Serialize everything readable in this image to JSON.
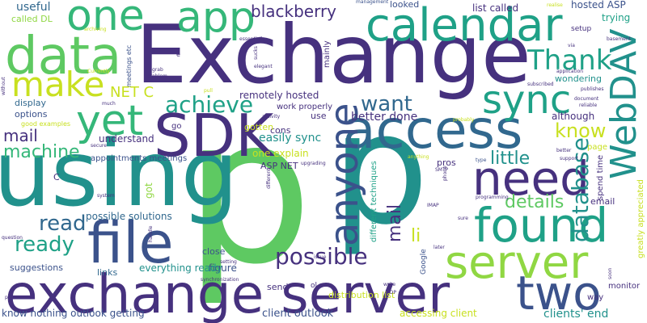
{
  "palette": {
    "dark_purple": "#46317e",
    "indigo": "#3b528b",
    "blue": "#31688e",
    "teal": "#21918c",
    "green_teal": "#1fa187",
    "green": "#35b779",
    "light_green": "#5ec962",
    "yellow_green": "#90d743",
    "yellow": "#c8e020"
  },
  "words": [
    {
      "text": "Exchange",
      "color": "#46317e"
    },
    {
      "text": "p",
      "color": "#5ec962"
    },
    {
      "text": "using",
      "color": "#21918c"
    },
    {
      "text": "p",
      "color": "#21918c"
    },
    {
      "text": "exchange server",
      "color": "#46317e"
    },
    {
      "text": "calendar",
      "color": "#1fa187"
    },
    {
      "text": "access",
      "color": "#31688e"
    },
    {
      "text": "data",
      "color": "#5ec962"
    },
    {
      "text": "file",
      "color": "#3b528b"
    },
    {
      "text": "SDK",
      "color": "#46317e"
    },
    {
      "text": "app",
      "color": "#35b779"
    },
    {
      "text": "one",
      "color": "#35b779"
    },
    {
      "text": "need",
      "color": "#46317e"
    },
    {
      "text": "found",
      "color": "#1fa187"
    },
    {
      "text": "server",
      "color": "#90d743"
    },
    {
      "text": "two",
      "color": "#3b528b"
    },
    {
      "text": "yet",
      "color": "#35b779"
    },
    {
      "text": "make",
      "color": "#c8e020"
    },
    {
      "text": "sync",
      "color": "#1fa187"
    },
    {
      "text": "Thank",
      "color": "#1fa187"
    },
    {
      "text": "WebDAV",
      "color": "#21918c"
    },
    {
      "text": "anyone",
      "color": "#3b528b"
    },
    {
      "text": "database",
      "color": "#21918c"
    },
    {
      "text": "possible",
      "color": "#46317e"
    },
    {
      "text": "blackberry",
      "color": "#46317e"
    },
    {
      "text": "achieve",
      "color": "#1fa187"
    },
    {
      "text": "want",
      "color": "#31688e"
    },
    {
      "text": "know",
      "color": "#c8e020"
    },
    {
      "text": "read",
      "color": "#31688e"
    },
    {
      "text": "ready",
      "color": "#1fa187"
    },
    {
      "text": "machine",
      "color": "#35b779"
    },
    {
      "text": "mail",
      "color": "#46317e"
    },
    {
      "text": "details",
      "color": "#5ec962"
    },
    {
      "text": "little",
      "color": "#21918c"
    },
    {
      "text": "searched",
      "color": "#31688e"
    },
    {
      "text": "li",
      "color": "#c8e020"
    },
    {
      "text": "NET C",
      "color": "#c8e020"
    },
    {
      "text": "useful",
      "color": "#31688e"
    },
    {
      "text": "hosted ASP",
      "color": "#3b528b"
    },
    {
      "text": "list called",
      "color": "#46317e"
    },
    {
      "text": "looked",
      "color": "#3b528b"
    },
    {
      "text": "remotely hosted",
      "color": "#46317e"
    },
    {
      "text": "better done",
      "color": "#46317e"
    },
    {
      "text": "although",
      "color": "#46317e"
    },
    {
      "text": "easily sync",
      "color": "#21918c"
    },
    {
      "text": "one explain",
      "color": "#c8e020"
    },
    {
      "text": "understand",
      "color": "#46317e"
    },
    {
      "text": "display",
      "color": "#31688e"
    },
    {
      "text": "options",
      "color": "#3b528b"
    },
    {
      "text": "possible solutions",
      "color": "#31688e"
    },
    {
      "text": "appointments meetings",
      "color": "#3b528b"
    },
    {
      "text": "figure",
      "color": "#3b528b"
    },
    {
      "text": "everything ready",
      "color": "#21918c"
    },
    {
      "text": "close",
      "color": "#3b528b"
    },
    {
      "text": "links",
      "color": "#31688e"
    },
    {
      "text": "suggestions",
      "color": "#3b528b"
    },
    {
      "text": "send",
      "color": "#46317e"
    },
    {
      "text": "distribution list",
      "color": "#c8e020"
    },
    {
      "text": "know nothing outlook getting",
      "color": "#3b528b"
    },
    {
      "text": "client outlook",
      "color": "#3b528b"
    },
    {
      "text": "accessing client",
      "color": "#c8e020"
    },
    {
      "text": "clients' end",
      "color": "#21918c"
    },
    {
      "text": "wondering",
      "color": "#21918c"
    },
    {
      "text": "work properly",
      "color": "#46317e"
    },
    {
      "text": "cons",
      "color": "#46317e"
    },
    {
      "text": "gotten",
      "color": "#c8e020"
    },
    {
      "text": "use",
      "color": "#46317e"
    },
    {
      "text": "ASP NET",
      "color": "#46317e"
    },
    {
      "text": "pros",
      "color": "#46317e"
    },
    {
      "text": "page",
      "color": "#c8e020"
    },
    {
      "text": "email",
      "color": "#46317e"
    },
    {
      "text": "way",
      "color": "#46317e"
    },
    {
      "text": "monitor",
      "color": "#46317e"
    },
    {
      "text": "trying",
      "color": "#1fa187"
    },
    {
      "text": "setup",
      "color": "#46317e"
    },
    {
      "text": "called DL",
      "color": "#90d743"
    },
    {
      "text": "go",
      "color": "#46317e"
    },
    {
      "text": "ol",
      "color": "#46317e"
    },
    {
      "text": "C",
      "color": "#46317e"
    },
    {
      "text": "good examples",
      "color": "#c8e020"
    },
    {
      "text": "spend time",
      "color": "#46317e"
    },
    {
      "text": "different techniques",
      "color": "#1fa187"
    },
    {
      "text": "mainly",
      "color": "#46317e"
    },
    {
      "text": "got",
      "color": "#90d743"
    },
    {
      "text": "meetings etc",
      "color": "#3b528b"
    },
    {
      "text": "greatly appreciated",
      "color": "#c8e020"
    },
    {
      "text": "Google",
      "color": "#3b528b"
    },
    {
      "text": "programming",
      "color": "#46317e"
    },
    {
      "text": "support",
      "color": "#46317e"
    },
    {
      "text": "better",
      "color": "#46317e"
    },
    {
      "text": "reliable",
      "color": "#46317e"
    },
    {
      "text": "publishes",
      "color": "#46317e"
    },
    {
      "text": "subscribed",
      "color": "#46317e"
    },
    {
      "text": "application",
      "color": "#46317e"
    },
    {
      "text": "document",
      "color": "#46317e"
    },
    {
      "text": "basement",
      "color": "#46317e"
    },
    {
      "text": "via",
      "color": "#46317e"
    },
    {
      "text": "realise",
      "color": "#c8e020"
    },
    {
      "text": "management",
      "color": "#3b528b"
    },
    {
      "text": "archiving",
      "color": "#c8e020"
    },
    {
      "text": "essentially",
      "color": "#46317e"
    },
    {
      "text": "elegant",
      "color": "#46317e"
    },
    {
      "text": "Currently",
      "color": "#c8e020"
    },
    {
      "text": "grab",
      "color": "#46317e"
    },
    {
      "text": "problem",
      "color": "#46317e"
    },
    {
      "text": "pull",
      "color": "#c8e020"
    },
    {
      "text": "much",
      "color": "#46317e"
    },
    {
      "text": "activity",
      "color": "#46317e"
    },
    {
      "text": "probably",
      "color": "#c8e020"
    },
    {
      "text": "secure",
      "color": "#46317e"
    },
    {
      "text": "anything",
      "color": "#c8e020"
    },
    {
      "text": "SMTP",
      "color": "#46317e"
    },
    {
      "text": "type",
      "color": "#3b528b"
    },
    {
      "text": "upgrading",
      "color": "#46317e"
    },
    {
      "text": "system",
      "color": "#46317e"
    },
    {
      "text": "IMAP",
      "color": "#46317e"
    },
    {
      "text": "sure",
      "color": "#46317e"
    },
    {
      "text": "question",
      "color": "#46317e"
    },
    {
      "text": "setting",
      "color": "#46317e"
    },
    {
      "text": "synchronization",
      "color": "#46317e"
    },
    {
      "text": "issue",
      "color": "#46317e"
    },
    {
      "text": "write",
      "color": "#46317e"
    },
    {
      "text": "POP",
      "color": "#46317e"
    },
    {
      "text": "later",
      "color": "#46317e"
    },
    {
      "text": "person",
      "color": "#46317e"
    },
    {
      "text": "smart",
      "color": "#46317e"
    },
    {
      "text": "handle",
      "color": "#46317e"
    },
    {
      "text": "soon",
      "color": "#46317e"
    },
    {
      "text": "without",
      "color": "#46317e"
    },
    {
      "text": "sucks",
      "color": "#46317e"
    },
    {
      "text": "phone",
      "color": "#46317e"
    },
    {
      "text": "e",
      "color": "#46317e"
    },
    {
      "text": "different",
      "color": "#46317e"
    }
  ]
}
